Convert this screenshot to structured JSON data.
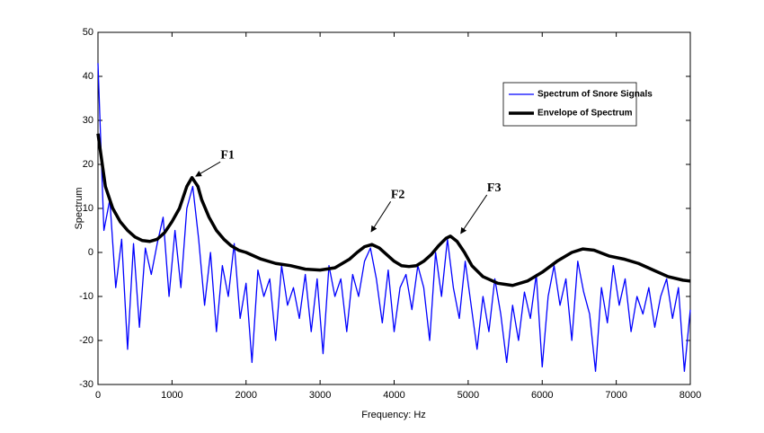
{
  "chart_data": {
    "type": "line",
    "xlabel": "Frequency: Hz",
    "ylabel": "Spectrum",
    "xlim": [
      0,
      8000
    ],
    "xticks": [
      0,
      1000,
      2000,
      3000,
      4000,
      5000,
      6000,
      7000,
      8000
    ],
    "ylim": [
      -30,
      50
    ],
    "yticks": [
      -30,
      -20,
      -10,
      0,
      10,
      20,
      30,
      40,
      50
    ],
    "grid": false,
    "legend": "upper right",
    "series": [
      {
        "name": "Spectrum of Snore Signals",
        "color": "#0000ff",
        "width": 1.3,
        "x": [
          0,
          80,
          160,
          240,
          320,
          400,
          480,
          560,
          640,
          720,
          800,
          880,
          960,
          1040,
          1120,
          1200,
          1280,
          1360,
          1440,
          1520,
          1600,
          1680,
          1760,
          1840,
          1920,
          2000,
          2080,
          2160,
          2240,
          2320,
          2400,
          2480,
          2560,
          2640,
          2720,
          2800,
          2880,
          2960,
          3040,
          3120,
          3200,
          3280,
          3360,
          3440,
          3520,
          3600,
          3680,
          3760,
          3840,
          3920,
          4000,
          4080,
          4160,
          4240,
          4320,
          4400,
          4480,
          4560,
          4640,
          4720,
          4800,
          4880,
          4960,
          5040,
          5120,
          5200,
          5280,
          5360,
          5440,
          5520,
          5600,
          5680,
          5760,
          5840,
          5920,
          6000,
          6080,
          6160,
          6240,
          6320,
          6400,
          6480,
          6560,
          6640,
          6720,
          6800,
          6880,
          6960,
          7040,
          7120,
          7200,
          7280,
          7360,
          7440,
          7520,
          7600,
          7680,
          7760,
          7840,
          7920,
          8000
        ],
        "values": [
          43,
          5,
          12,
          -8,
          3,
          -22,
          2,
          -17,
          1,
          -5,
          2,
          8,
          -10,
          5,
          -8,
          10,
          15,
          3,
          -12,
          0,
          -18,
          -3,
          -10,
          2,
          -15,
          -7,
          -25,
          -4,
          -10,
          -6,
          -20,
          -3,
          -12,
          -8,
          -15,
          -5,
          -18,
          -6,
          -23,
          -3,
          -10,
          -6,
          -18,
          -5,
          -10,
          -2,
          1,
          -6,
          -16,
          -4,
          -18,
          -8,
          -5,
          -13,
          -3,
          -8,
          -20,
          0,
          -10,
          3,
          -8,
          -15,
          -2,
          -12,
          -22,
          -10,
          -18,
          -6,
          -14,
          -25,
          -12,
          -20,
          -9,
          -15,
          -5,
          -26,
          -10,
          -3,
          -12,
          -6,
          -20,
          -2,
          -9,
          -14,
          -27,
          -8,
          -16,
          -3,
          -12,
          -6,
          -18,
          -10,
          -14,
          -8,
          -17,
          -10,
          -6,
          -15,
          -8,
          -27,
          -13
        ]
      },
      {
        "name": "Envelope of Spectrum",
        "color": "#000000",
        "width": 3.5,
        "x": [
          0,
          100,
          200,
          300,
          400,
          500,
          600,
          700,
          800,
          900,
          1000,
          1100,
          1200,
          1270,
          1350,
          1400,
          1500,
          1600,
          1700,
          1800,
          1900,
          2000,
          2200,
          2400,
          2600,
          2800,
          3000,
          3200,
          3300,
          3400,
          3500,
          3600,
          3700,
          3800,
          3900,
          4000,
          4100,
          4200,
          4300,
          4400,
          4500,
          4600,
          4700,
          4760,
          4850,
          4950,
          5050,
          5200,
          5400,
          5600,
          5800,
          6000,
          6200,
          6400,
          6550,
          6700,
          6900,
          7100,
          7300,
          7500,
          7700,
          7900,
          8000
        ],
        "values": [
          27,
          15,
          10,
          7,
          5,
          3.5,
          2.7,
          2.5,
          3,
          4.5,
          7,
          10,
          15,
          17,
          15,
          12,
          8,
          5,
          3,
          1.5,
          0.5,
          0,
          -1.5,
          -2.5,
          -3,
          -3.8,
          -4,
          -3.5,
          -2.5,
          -1.5,
          0,
          1.3,
          1.8,
          1,
          -0.5,
          -2,
          -3,
          -3.2,
          -3,
          -2,
          -0.5,
          1.5,
          3.2,
          3.7,
          2.5,
          0,
          -3,
          -5.5,
          -7,
          -7.5,
          -6.5,
          -4.5,
          -2,
          0,
          0.8,
          0.5,
          -0.8,
          -1.5,
          -2.5,
          -4,
          -5.5,
          -6.3,
          -6.5
        ]
      }
    ],
    "annotations": [
      {
        "text": "F1",
        "x": 1750,
        "y": 22,
        "arrow_to": [
          1320,
          17.3
        ]
      },
      {
        "text": "F2",
        "x": 4050,
        "y": 13,
        "arrow_to": [
          3690,
          4.7
        ]
      },
      {
        "text": "F3",
        "x": 5350,
        "y": 14.5,
        "arrow_to": [
          4900,
          4.3
        ]
      }
    ]
  }
}
